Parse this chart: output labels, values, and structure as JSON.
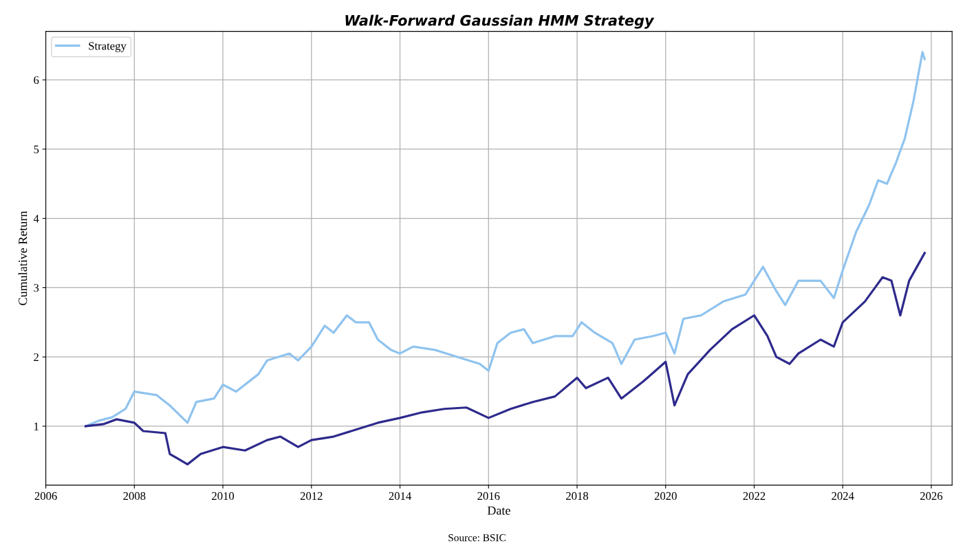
{
  "chart_data": {
    "type": "line",
    "title": "Walk-Forward Gaussian HMM Strategy",
    "xlabel": "Date",
    "ylabel": "Cumulative Return",
    "annotations": [
      "Source: BSIC"
    ],
    "xlim": [
      2006,
      2026.47
    ],
    "ylim": [
      0.15,
      6.7
    ],
    "xticks": [
      2006,
      2008,
      2010,
      2012,
      2014,
      2016,
      2018,
      2020,
      2022,
      2024,
      2026
    ],
    "yticks": [
      1,
      2,
      3,
      4,
      5,
      6
    ],
    "grid": true,
    "legend": "top left",
    "line_style": "solid",
    "marker": "none",
    "series": [
      {
        "name": "Strategy",
        "color": "#8fc3ef",
        "x": [
          2006.9,
          2007.2,
          2007.5,
          2007.8,
          2008.0,
          2008.5,
          2008.8,
          2009.2,
          2009.4,
          2009.8,
          2010.0,
          2010.3,
          2010.8,
          2011.0,
          2011.5,
          2011.7,
          2012.0,
          2012.3,
          2012.5,
          2012.8,
          2013.0,
          2013.3,
          2013.5,
          2013.8,
          2014.0,
          2014.3,
          2014.8,
          2015.3,
          2015.8,
          2016.0,
          2016.2,
          2016.5,
          2016.8,
          2017.0,
          2017.5,
          2017.9,
          2018.1,
          2018.4,
          2018.8,
          2019.0,
          2019.3,
          2019.7,
          2020.0,
          2020.2,
          2020.4,
          2020.8,
          2021.3,
          2021.8,
          2022.0,
          2022.2,
          2022.5,
          2022.7,
          2023.0,
          2023.5,
          2023.8,
          2024.0,
          2024.3,
          2024.6,
          2024.8,
          2025.0,
          2025.2,
          2025.4,
          2025.6,
          2025.8,
          2025.85
        ],
        "values": [
          1.0,
          1.08,
          1.13,
          1.25,
          1.5,
          1.45,
          1.3,
          1.05,
          1.35,
          1.4,
          1.6,
          1.5,
          1.75,
          1.95,
          2.05,
          1.95,
          2.15,
          2.45,
          2.35,
          2.6,
          2.5,
          2.5,
          2.25,
          2.1,
          2.05,
          2.15,
          2.1,
          2.0,
          1.9,
          1.8,
          2.2,
          2.35,
          2.4,
          2.2,
          2.3,
          2.3,
          2.5,
          2.35,
          2.2,
          1.9,
          2.25,
          2.3,
          2.35,
          2.05,
          2.55,
          2.6,
          2.8,
          2.9,
          3.1,
          3.3,
          2.95,
          2.75,
          3.1,
          3.1,
          2.85,
          3.25,
          3.8,
          4.2,
          4.55,
          4.5,
          4.8,
          5.15,
          5.7,
          6.4,
          6.3
        ]
      },
      {
        "color": "#2e2a8c",
        "x": [
          2006.9,
          2007.3,
          2007.6,
          2008.0,
          2008.2,
          2008.7,
          2008.8,
          2009.2,
          2009.5,
          2010.0,
          2010.5,
          2011.0,
          2011.3,
          2011.7,
          2012.0,
          2012.5,
          2013.0,
          2013.5,
          2014.0,
          2014.5,
          2015.0,
          2015.5,
          2016.0,
          2016.5,
          2017.0,
          2017.5,
          2018.0,
          2018.2,
          2018.7,
          2019.0,
          2019.5,
          2020.0,
          2020.2,
          2020.5,
          2021.0,
          2021.5,
          2022.0,
          2022.3,
          2022.5,
          2022.8,
          2023.0,
          2023.5,
          2023.8,
          2024.0,
          2024.5,
          2024.9,
          2025.1,
          2025.3,
          2025.5,
          2025.85
        ],
        "values": [
          1.0,
          1.03,
          1.1,
          1.05,
          0.93,
          0.9,
          0.6,
          0.45,
          0.6,
          0.7,
          0.65,
          0.8,
          0.85,
          0.7,
          0.8,
          0.85,
          0.95,
          1.05,
          1.12,
          1.2,
          1.25,
          1.27,
          1.12,
          1.25,
          1.35,
          1.43,
          1.7,
          1.55,
          1.7,
          1.4,
          1.65,
          1.93,
          1.3,
          1.75,
          2.1,
          2.4,
          2.6,
          2.3,
          2.0,
          1.9,
          2.05,
          2.25,
          2.15,
          2.5,
          2.8,
          3.15,
          3.1,
          2.6,
          3.1,
          3.5
        ]
      }
    ]
  }
}
